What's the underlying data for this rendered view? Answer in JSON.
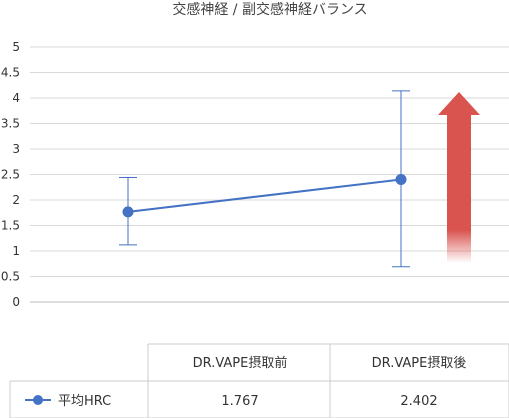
{
  "chart_data": {
    "type": "line",
    "title": "交感神経 / 副交感神経バランス",
    "categories": [
      "DR.VAPE摂取前",
      "DR.VAPE摂取後"
    ],
    "series": [
      {
        "name": "平均HRC",
        "values": [
          1.767,
          2.402
        ],
        "error_low": [
          1.12,
          0.69
        ],
        "error_high": [
          2.44,
          4.14
        ],
        "color": "#4472c4"
      }
    ],
    "ylim": [
      0,
      5
    ],
    "yticks": [
      "0",
      "0.5",
      "1",
      "1.5",
      "2",
      "2.5",
      "3",
      "3.5",
      "4",
      "4.5",
      "5"
    ],
    "grid": true,
    "annotation": {
      "type": "up-arrow",
      "color": "#d9534f"
    },
    "table": {
      "row_label": "平均HRC",
      "values": [
        "1.767",
        "2.402"
      ]
    }
  }
}
